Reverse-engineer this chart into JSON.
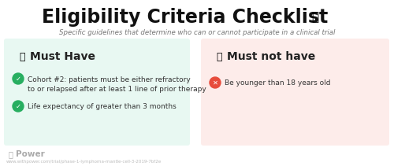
{
  "title": "Eligibility Criteria Checklist",
  "subtitle": "Specific guidelines that determine who can or cannot participate in a clinical trial",
  "left_panel": {
    "header": "Must Have",
    "bg_color": "#e8f8f2",
    "items": [
      "Cohort #2: patients must be either refractory\nto or relapsed after at least 1 line of prior therapy",
      "Life expectancy of greater than 3 months"
    ],
    "item_colors": [
      "#27ae60",
      "#27ae60"
    ]
  },
  "right_panel": {
    "header": "Must not have",
    "bg_color": "#fdecea",
    "items": [
      "Be younger than 18 years old"
    ],
    "item_colors": [
      "#e74c3c"
    ]
  },
  "footer_text": "Power",
  "footer_url": "www.withpower.com/trial/phase-1-lymphoma-mantle-cell-3-2019-7bf2e",
  "bg_color": "#ffffff",
  "title_color": "#111111",
  "subtitle_color": "#777777",
  "text_color": "#333333",
  "header_color": "#222222"
}
